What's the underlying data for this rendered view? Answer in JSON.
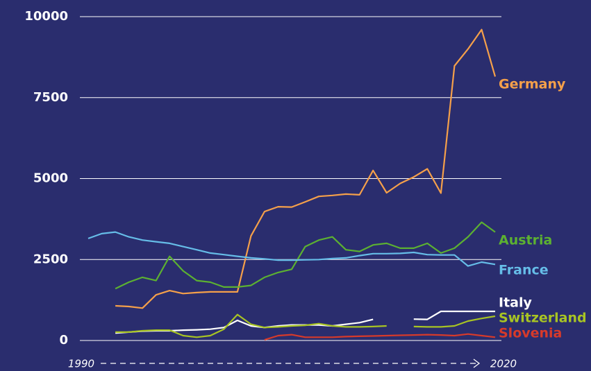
{
  "chart_data": {
    "type": "line",
    "x": [
      1990,
      1991,
      1992,
      1993,
      1994,
      1995,
      1996,
      1997,
      1998,
      1999,
      2000,
      2001,
      2002,
      2003,
      2004,
      2005,
      2006,
      2007,
      2008,
      2009,
      2010,
      2011,
      2012,
      2013,
      2014,
      2015,
      2016,
      2017,
      2018,
      2019,
      2020
    ],
    "xlim": [
      1990,
      2020
    ],
    "xticks": [
      1990,
      2020
    ],
    "ylim": [
      0,
      10000
    ],
    "yticks": [
      0,
      2500,
      5000,
      7500,
      10000
    ],
    "grid": true,
    "series": [
      {
        "name": "Germany",
        "color": "#f5a04a",
        "values": [
          null,
          null,
          1070,
          1050,
          1000,
          1410,
          1540,
          1450,
          1480,
          1500,
          1500,
          1500,
          3230,
          3980,
          4130,
          4120,
          4280,
          4450,
          4480,
          4520,
          4500,
          5250,
          4560,
          4850,
          5050,
          5300,
          4550,
          8480,
          9000,
          9600,
          8150
        ]
      },
      {
        "name": "Austria",
        "color": "#5cb131",
        "values": [
          null,
          null,
          1600,
          1800,
          1950,
          1850,
          2600,
          2150,
          1850,
          1800,
          1650,
          1650,
          1700,
          1950,
          2100,
          2200,
          2900,
          3100,
          3200,
          2800,
          2750,
          2950,
          3000,
          2850,
          2850,
          3000,
          2700,
          2850,
          3200,
          3650,
          3350
        ]
      },
      {
        "name": "France",
        "color": "#66bde8",
        "values": [
          3150,
          3300,
          3350,
          3200,
          3100,
          3050,
          3000,
          2900,
          2800,
          2700,
          2650,
          2600,
          2550,
          2520,
          2480,
          2480,
          2490,
          2500,
          2530,
          2550,
          2620,
          2680,
          2680,
          2690,
          2720,
          2650,
          2640,
          2640,
          2300,
          2420,
          2350
        ]
      },
      {
        "name": "Italy",
        "color": "#ffffff",
        "values": [
          null,
          null,
          230,
          260,
          290,
          300,
          300,
          320,
          330,
          350,
          400,
          620,
          450,
          400,
          450,
          480,
          480,
          480,
          450,
          500,
          550,
          650,
          null,
          null,
          660,
          650,
          900,
          900,
          900,
          900,
          900
        ]
      },
      {
        "name": "Switzerland",
        "color": "#a8c423",
        "values": [
          null,
          null,
          260,
          260,
          300,
          320,
          320,
          150,
          100,
          150,
          350,
          800,
          500,
          400,
          420,
          450,
          470,
          520,
          450,
          420,
          420,
          430,
          450,
          null,
          430,
          420,
          420,
          450,
          600,
          680,
          750
        ]
      },
      {
        "name": "Slovenia",
        "color": "#d73a2a",
        "values": [
          null,
          null,
          null,
          null,
          null,
          null,
          null,
          null,
          null,
          null,
          null,
          null,
          null,
          20,
          150,
          180,
          100,
          100,
          100,
          120,
          130,
          140,
          150,
          160,
          170,
          180,
          170,
          150,
          200,
          150,
          100
        ]
      }
    ]
  }
}
